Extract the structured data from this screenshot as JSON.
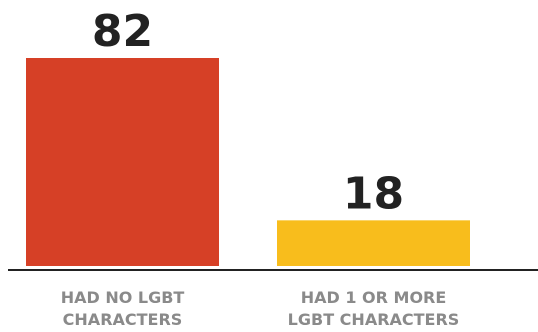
{
  "chart_data": {
    "type": "bar",
    "categories": [
      [
        "HAD NO LGBT",
        "CHARACTERS"
      ],
      [
        "HAD 1 OR MORE",
        "LGBT CHARACTERS"
      ]
    ],
    "values": [
      82,
      18
    ],
    "value_labels": [
      "82",
      "18"
    ],
    "colors": [
      "#d64026",
      "#f8bd1c"
    ],
    "ylim": [
      0,
      82
    ],
    "title": "",
    "xlabel": "",
    "ylabel": "",
    "grid": false,
    "legend": "none"
  }
}
